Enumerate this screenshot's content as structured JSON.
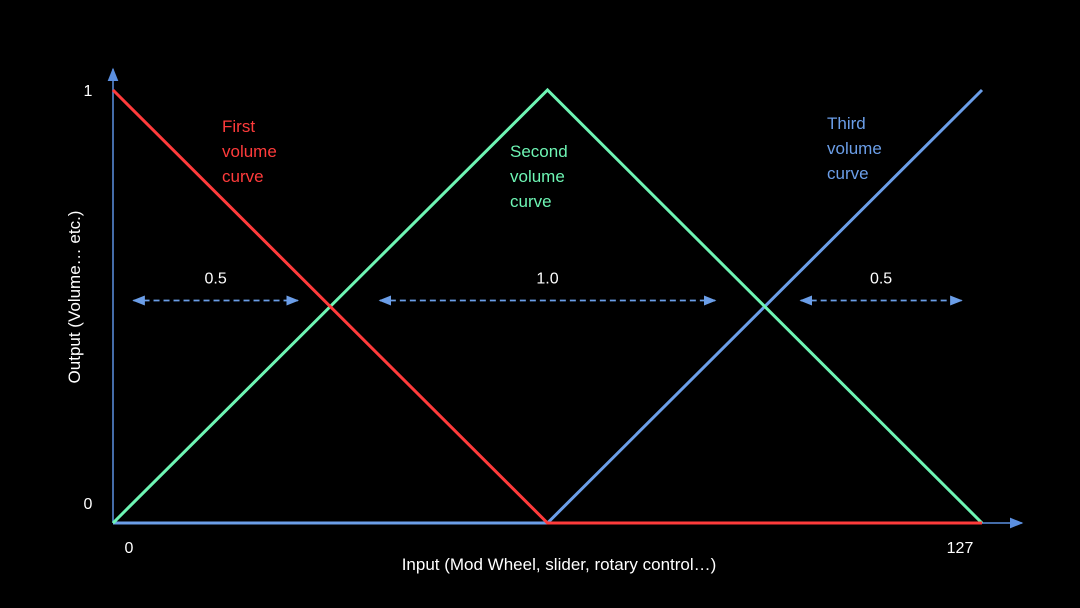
{
  "chart_data": {
    "type": "line",
    "xlabel": "Input (Mod Wheel, slider, rotary control…)",
    "ylabel": "Output (Volume… etc.)",
    "xlim": [
      0,
      127
    ],
    "ylim": [
      0,
      1
    ],
    "x_ticks": [
      "0",
      "127"
    ],
    "y_ticks": [
      "1",
      "0"
    ],
    "grid": false,
    "legend": "none",
    "colors": {
      "background": "#000000",
      "axis": "#5b8fe0",
      "text": "#ffffff",
      "first": "#ff3b3b",
      "second": "#6ef5b4",
      "third": "#6b9ee8",
      "arrow": "#6b9ee8"
    },
    "series": [
      {
        "name_lines": [
          "First",
          "volume",
          "curve"
        ],
        "x": [
          0,
          63.5,
          127
        ],
        "y": [
          1,
          0,
          0
        ]
      },
      {
        "name_lines": [
          "Second",
          "volume",
          "curve"
        ],
        "x": [
          0,
          63.5,
          127
        ],
        "y": [
          0,
          1,
          0
        ]
      },
      {
        "name_lines": [
          "Third",
          "volume",
          "curve"
        ],
        "x": [
          0,
          63.5,
          127
        ],
        "y": [
          0,
          0,
          1
        ]
      }
    ],
    "annotations": [
      {
        "text": "0.5",
        "x_from": 3,
        "x_to": 27,
        "y": 0.5
      },
      {
        "text": "1.0",
        "x_from": 39,
        "x_to": 88,
        "y": 0.5
      },
      {
        "text": "0.5",
        "x_from": 100.5,
        "x_to": 124,
        "y": 0.5
      }
    ]
  }
}
